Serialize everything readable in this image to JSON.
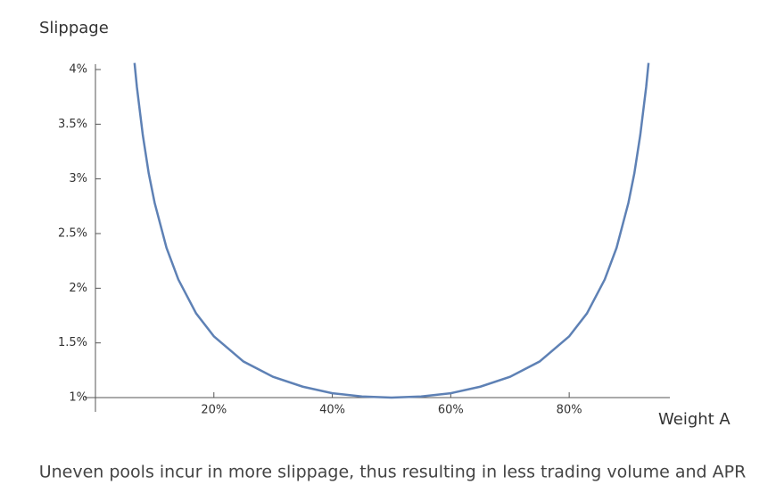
{
  "chart_data": {
    "type": "line",
    "title": "Slippage",
    "x_label": "Weight A",
    "caption": "Uneven pools incur in more slippage, thus resulting in less trading volume and APR",
    "xlim": [
      0,
      97
    ],
    "ylim": [
      1,
      4
    ],
    "xticks": [
      {
        "value": 20,
        "label": "20%"
      },
      {
        "value": 40,
        "label": "40%"
      },
      {
        "value": 60,
        "label": "60%"
      },
      {
        "value": 80,
        "label": "80%"
      }
    ],
    "yticks": [
      {
        "value": 1,
        "label": "1%"
      },
      {
        "value": 1.5,
        "label": "1.5%"
      },
      {
        "value": 2,
        "label": "2%"
      },
      {
        "value": 2.5,
        "label": "2.5%"
      },
      {
        "value": 3,
        "label": "3%"
      },
      {
        "value": 3.5,
        "label": "3.5%"
      },
      {
        "value": 4,
        "label": "4%"
      }
    ],
    "x": [
      6.6,
      7,
      8,
      9,
      10,
      12,
      14,
      17,
      20,
      25,
      30,
      35,
      40,
      45,
      50,
      55,
      60,
      65,
      70,
      75,
      80,
      83,
      86,
      88,
      90,
      91,
      92,
      93,
      93.4
    ],
    "series": [
      {
        "name": "Slippage",
        "color": "#5e81b5",
        "values": [
          4.06,
          3.84,
          3.4,
          3.05,
          2.78,
          2.37,
          2.08,
          1.77,
          1.56,
          1.33,
          1.19,
          1.1,
          1.04,
          1.01,
          1.0,
          1.01,
          1.04,
          1.1,
          1.19,
          1.33,
          1.56,
          1.77,
          2.08,
          2.37,
          2.78,
          3.05,
          3.4,
          3.84,
          4.06
        ]
      }
    ]
  }
}
